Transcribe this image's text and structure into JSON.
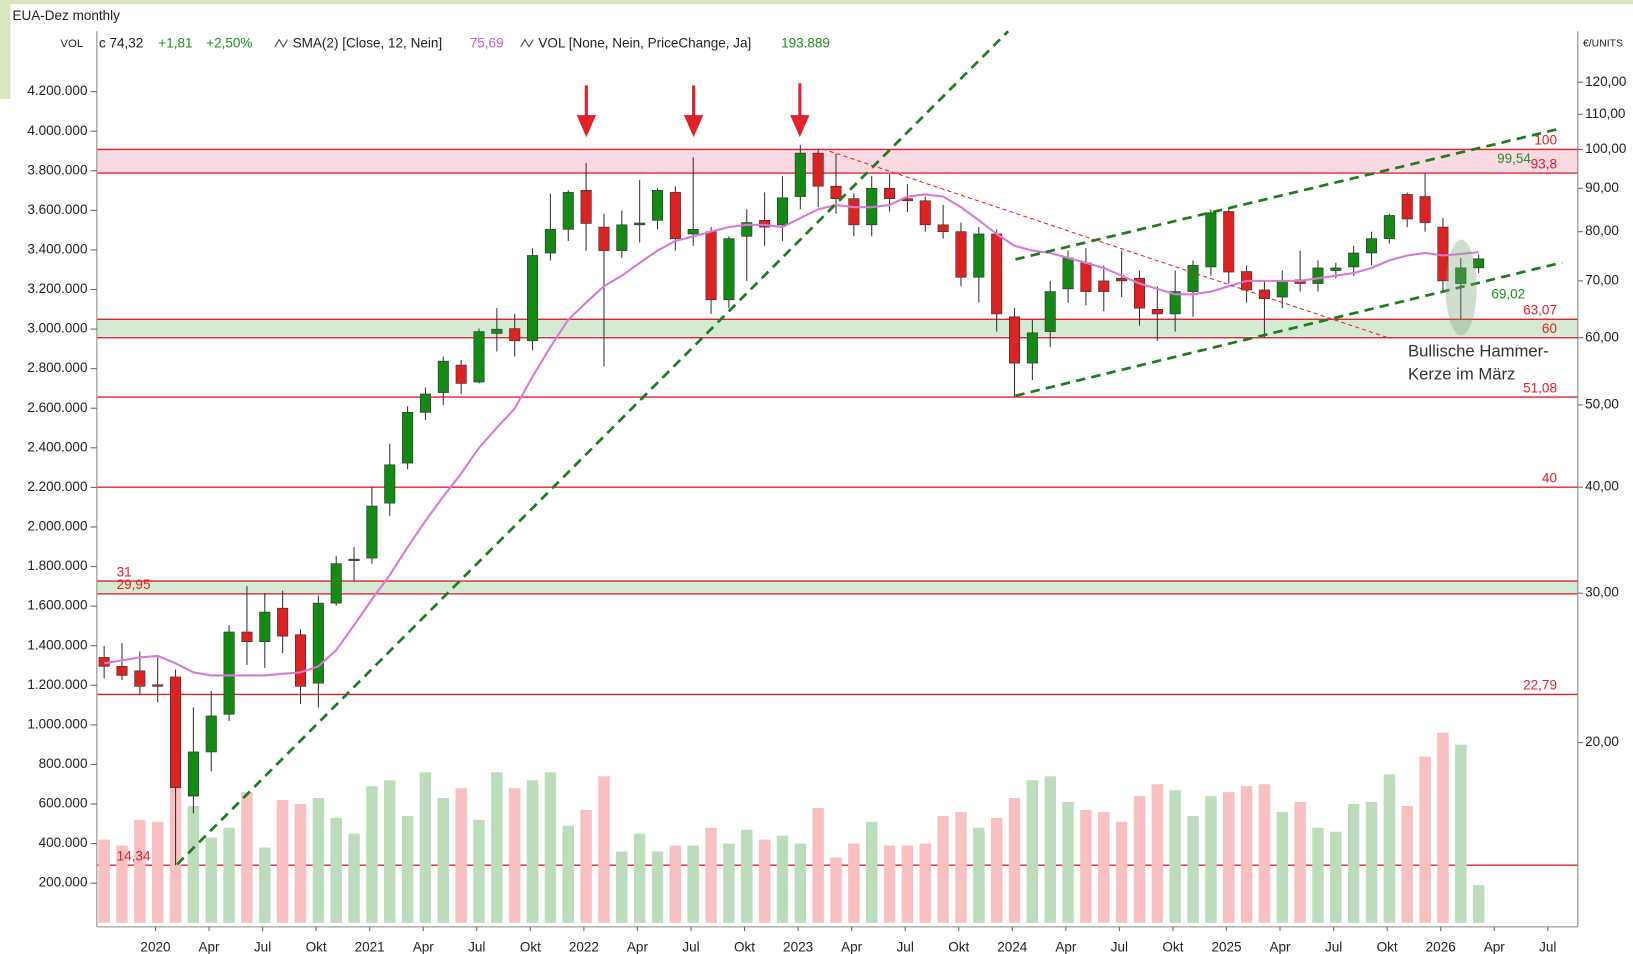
{
  "chart_data": {
    "type": "candlestick",
    "title": "EUA-Dez monthly",
    "header": {
      "volume_label": "VOL",
      "close": "c 74,32",
      "change": "+1,81",
      "change_pct": "+2,50%",
      "sma": "SMA(2) [Close, 12, Nein]",
      "sma_value": "75,69",
      "vol_indicator": "VOL [None, Nein, PriceChange, Ja]",
      "vol_value": "193.889"
    },
    "y_unit": "€/UNITS",
    "categories": [
      null,
      null,
      "2020",
      null,
      null,
      "Apr",
      null,
      null,
      "Jul",
      null,
      null,
      "Okt",
      null,
      null,
      "2021",
      null,
      null,
      "Apr",
      null,
      null,
      "Jul",
      null,
      null,
      "Okt",
      null,
      null,
      "2022",
      null,
      null,
      "Apr",
      null,
      null,
      "Jul",
      null,
      null,
      "Okt",
      null,
      null,
      "2023",
      null,
      null,
      "Apr",
      null,
      null,
      "Jul",
      null,
      null,
      "Okt",
      null,
      null,
      "2024",
      null,
      null,
      "Apr",
      null,
      null,
      "Jul",
      null,
      null,
      "Okt",
      null,
      null,
      "2025",
      null,
      null,
      "Apr",
      null,
      null,
      "Jul",
      null,
      null,
      "Okt",
      null,
      null,
      "2026",
      null,
      null,
      "Apr",
      null,
      null,
      "Jul"
    ],
    "open": [
      25.2,
      24.6,
      24.3,
      23.4,
      23.9,
      17.3,
      19.5,
      21.6,
      27.0,
      26.3,
      28.8,
      26.8,
      23.5,
      29.2,
      32.8,
      33.0,
      38.3,
      42.7,
      49.0,
      51.7,
      55.7,
      53.2,
      60.7,
      61.5,
      59.5,
      75.5,
      80.5,
      89.5,
      81.0,
      76.0,
      81.5,
      82.5,
      89.0,
      79.5,
      80.0,
      66.5,
      79.0,
      82.5,
      81.5,
      88.0,
      99.0,
      90.5,
      87.5,
      81.5,
      90.0,
      87.5,
      87.0,
      81.5,
      80.0,
      70.7,
      79.5,
      63.5,
      56.0,
      61.0,
      68.5,
      73.5,
      70.0,
      70.5,
      70.5,
      64.8,
      64.0,
      68.0,
      72.7,
      84.5,
      71.8,
      68.3,
      67.0,
      70.2,
      69.5,
      72.0,
      72.7,
      75.5,
      78.5,
      88.5,
      88.0,
      81.0,
      69.5,
      72.51,
      null,
      null,
      null
    ],
    "high": [
      26.0,
      26.2,
      25.6,
      25.2,
      24.4,
      22.0,
      23.0,
      27.5,
      30.6,
      30.0,
      30.2,
      27.2,
      29.8,
      33.2,
      34.0,
      40.0,
      45.0,
      49.8,
      52.4,
      57.0,
      56.5,
      61.5,
      65.0,
      64.0,
      76.5,
      88.7,
      89.5,
      96.4,
      84.0,
      84.7,
      92.0,
      90.0,
      90.5,
      97.9,
      81.0,
      79.0,
      85.0,
      89.0,
      93.0,
      101.2,
      100.0,
      98.8,
      88.8,
      93.0,
      93.5,
      91.0,
      88.0,
      86.0,
      82.0,
      81.0,
      80.5,
      65.0,
      63.0,
      70.0,
      76.0,
      76.5,
      73.0,
      76.0,
      72.0,
      69.0,
      72.0,
      74.0,
      85.0,
      85.0,
      73.0,
      70.0,
      72.0,
      76.0,
      74.0,
      73.5,
      77.0,
      80.0,
      84.0,
      89.0,
      93.8,
      83.0,
      74.5,
      75.2,
      null,
      null,
      null
    ],
    "low": [
      23.8,
      23.7,
      22.8,
      22.3,
      14.34,
      16.5,
      18.5,
      21.2,
      24.7,
      24.5,
      25.5,
      22.2,
      22.0,
      29.0,
      31.0,
      32.5,
      37.0,
      42.0,
      48.0,
      50.0,
      51.5,
      53.0,
      57.8,
      57.0,
      58.0,
      74.0,
      78.0,
      76.0,
      55.5,
      74.5,
      77.7,
      80.5,
      76.0,
      77.0,
      64.0,
      65.0,
      70.0,
      77.0,
      78.0,
      85.0,
      85.5,
      84.0,
      79.0,
      79.0,
      84.5,
      84.4,
      80.0,
      78.5,
      69.0,
      66.0,
      61.0,
      51.1,
      53.5,
      58.5,
      66.0,
      65.5,
      64.5,
      67.0,
      62.0,
      59.5,
      61.0,
      63.5,
      71.0,
      69.5,
      66.0,
      60.0,
      65.0,
      68.0,
      68.0,
      70.5,
      71.0,
      73.0,
      77.5,
      81.0,
      80.0,
      68.0,
      63.1,
      71.5,
      null,
      null,
      null
    ],
    "close": [
      24.6,
      24.0,
      23.3,
      23.3,
      17.7,
      19.5,
      21.5,
      27.0,
      26.3,
      28.5,
      26.7,
      23.3,
      29.2,
      32.5,
      32.9,
      38.0,
      42.5,
      49.0,
      51.5,
      56.3,
      53.0,
      61.0,
      61.4,
      59.5,
      75.0,
      80.5,
      89.0,
      81.8,
      76.0,
      81.5,
      81.9,
      89.5,
      78.5,
      80.5,
      66.5,
      78.5,
      82.0,
      81.0,
      87.7,
      99.0,
      90.5,
      87.5,
      81.5,
      90.0,
      87.5,
      87.0,
      81.5,
      80.0,
      70.7,
      79.5,
      64.0,
      56.0,
      60.8,
      68.0,
      74.5,
      68.0,
      68.0,
      70.0,
      65.0,
      64.0,
      68.0,
      73.0,
      84.2,
      71.7,
      68.3,
      66.7,
      70.0,
      69.5,
      72.5,
      72.5,
      75.5,
      78.5,
      83.6,
      82.8,
      82.0,
      70.0,
      72.51,
      74.32,
      null,
      null,
      null
    ],
    "volume": [
      420000,
      390000,
      520000,
      510000,
      690000,
      590000,
      430000,
      480000,
      660000,
      380000,
      620000,
      600000,
      630000,
      530000,
      450000,
      690000,
      720000,
      540000,
      760000,
      630000,
      680000,
      520000,
      760000,
      680000,
      720000,
      760000,
      490000,
      570000,
      740000,
      360000,
      450000,
      360000,
      390000,
      390000,
      480000,
      400000,
      470000,
      420000,
      440000,
      400000,
      580000,
      330000,
      400000,
      510000,
      390000,
      390000,
      400000,
      540000,
      560000,
      480000,
      530000,
      630000,
      720000,
      740000,
      610000,
      570000,
      560000,
      510000,
      640000,
      700000,
      670000,
      540000,
      640000,
      660000,
      690000,
      700000,
      560000,
      610000,
      480000,
      460000,
      600000,
      610000,
      750000,
      590000,
      840000,
      960000,
      900000,
      190000,
      null,
      null,
      null
    ],
    "sma": [
      24.8,
      25.0,
      25.2,
      25.3,
      24.8,
      24.2,
      24.0,
      24.0,
      24.0,
      24.0,
      24.1,
      24.2,
      24.6,
      25.7,
      27.5,
      29.5,
      31.5,
      34.0,
      36.5,
      39.0,
      41.5,
      44.5,
      47.0,
      49.5,
      54.0,
      58.5,
      63.0,
      66.0,
      69.0,
      71.0,
      73.5,
      76.0,
      78.0,
      79.0,
      80.0,
      81.0,
      81.5,
      81.5,
      81.0,
      83.0,
      85.0,
      86.0,
      85.5,
      85.5,
      86.0,
      88.0,
      88.5,
      88.0,
      85.5,
      82.5,
      79.5,
      77.0,
      76.0,
      75.5,
      74.5,
      73.5,
      72.5,
      71.0,
      69.5,
      68.5,
      67.5,
      67.5,
      68.0,
      69.0,
      70.0,
      70.0,
      70.0,
      70.0,
      70.5,
      71.0,
      71.5,
      72.5,
      74.0,
      75.0,
      75.5,
      75.0,
      75.3,
      75.69,
      null,
      null,
      null
    ],
    "up_color": "#138a13",
    "down_color": "#dd2222",
    "up_volume_color": "#bcdcbc",
    "down_volume_color": "#f8c0c0",
    "sma_color": "#d77ad7",
    "level_color": "#e4202a",
    "ylim": [
      12.13,
      137.8
    ],
    "log_scale": true,
    "yticks": [
      {
        "value": 20,
        "label": "20,00"
      },
      {
        "value": 30,
        "label": "30,00"
      },
      {
        "value": 40,
        "label": "40,00"
      },
      {
        "value": 50,
        "label": "50,00"
      },
      {
        "value": 60,
        "label": "60,00"
      },
      {
        "value": 70,
        "label": "70,00"
      },
      {
        "value": 80,
        "label": "80,00"
      },
      {
        "value": 90,
        "label": "90,00"
      },
      {
        "value": 100,
        "label": "100,00"
      },
      {
        "value": 110,
        "label": "110,00"
      },
      {
        "value": 120,
        "label": "120,00"
      }
    ],
    "y2lim": [
      -21000,
      4505000
    ],
    "y2ticks": [
      {
        "value": 200000,
        "label": "200.000"
      },
      {
        "value": 400000,
        "label": "400.000"
      },
      {
        "value": 600000,
        "label": "600.000"
      },
      {
        "value": 800000,
        "label": "800.000"
      },
      {
        "value": 1000000,
        "label": "1.000.000"
      },
      {
        "value": 1200000,
        "label": "1.200.000"
      },
      {
        "value": 1400000,
        "label": "1.400.000"
      },
      {
        "value": 1600000,
        "label": "1.600.000"
      },
      {
        "value": 1800000,
        "label": "1.800.000"
      },
      {
        "value": 2000000,
        "label": "2.000.000"
      },
      {
        "value": 2200000,
        "label": "2.200.000"
      },
      {
        "value": 2400000,
        "label": "2.400.000"
      },
      {
        "value": 2600000,
        "label": "2.600.000"
      },
      {
        "value": 2800000,
        "label": "2.800.000"
      },
      {
        "value": 3000000,
        "label": "3.000.000"
      },
      {
        "value": 3200000,
        "label": "3.200.000"
      },
      {
        "value": 3400000,
        "label": "3.400.000"
      },
      {
        "value": 3600000,
        "label": "3.600.000"
      },
      {
        "value": 3800000,
        "label": "3.800.000"
      },
      {
        "value": 4000000,
        "label": "4.000.000"
      },
      {
        "value": 4200000,
        "label": "4.200.000"
      }
    ],
    "levels": [
      {
        "value": 100,
        "label": "100",
        "side": "right"
      },
      {
        "value": 93.8,
        "label": "93,8",
        "side": "right"
      },
      {
        "value": 63.07,
        "label": "63,07",
        "side": "right"
      },
      {
        "value": 60,
        "label": "60",
        "side": "right"
      },
      {
        "value": 51.08,
        "label": "51,08",
        "side": "right"
      },
      {
        "value": 40,
        "label": "40",
        "side": "right"
      },
      {
        "value": 31,
        "label": "31",
        "side": "left"
      },
      {
        "value": 29.95,
        "label": "29,95",
        "side": "left"
      },
      {
        "value": 22.79,
        "label": "22,79",
        "side": "right"
      },
      {
        "value": 14.34,
        "label": "14,34",
        "side": "left"
      }
    ],
    "annotations": [
      "Bullische Hammer-",
      "Kerze im März",
      "99,54",
      "69,02"
    ]
  }
}
